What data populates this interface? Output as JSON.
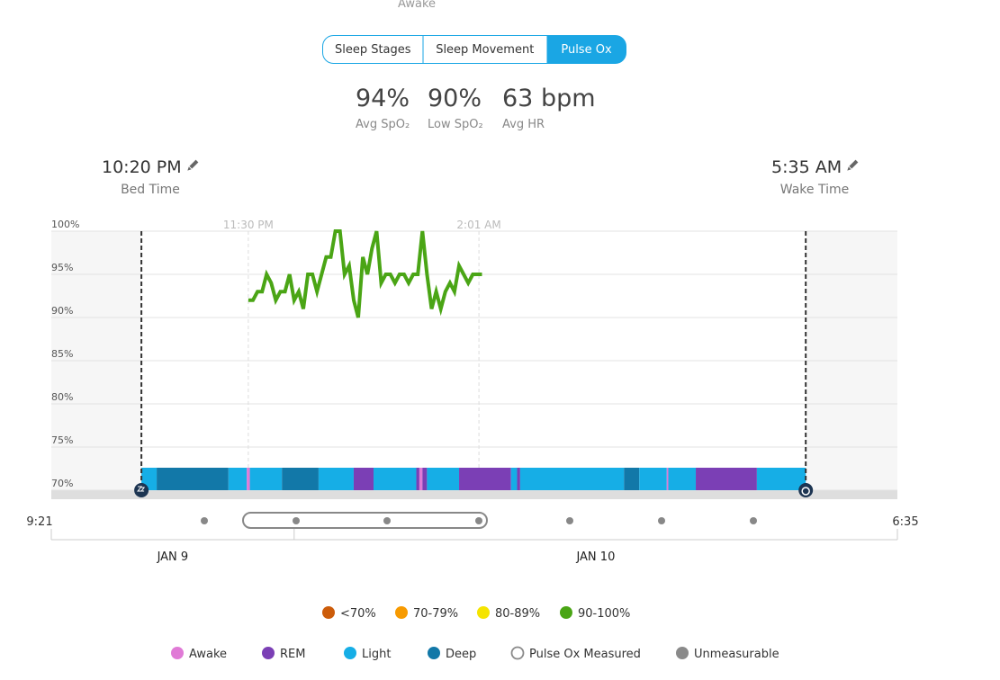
{
  "top_fragment": "Awake",
  "tabs": {
    "items": [
      "Sleep Stages",
      "Sleep Movement",
      "Pulse Ox"
    ],
    "active": 2
  },
  "stats": [
    {
      "value": "94%",
      "label": "Avg SpO₂"
    },
    {
      "value": "90%",
      "label": "Low SpO₂"
    },
    {
      "value": "63 bpm",
      "label": "Avg HR"
    }
  ],
  "bed_time": {
    "time": "10:20 PM",
    "label": "Bed Time"
  },
  "wake_time": {
    "time": "5:35 AM",
    "label": "Wake Time"
  },
  "chart_data": {
    "type": "line",
    "x": [
      "23:30",
      "23:33",
      "23:36",
      "23:39",
      "23:42",
      "23:45",
      "23:48",
      "23:51",
      "23:54",
      "23:57",
      "00:00",
      "00:03",
      "00:06",
      "00:09",
      "00:12",
      "00:15",
      "00:18",
      "00:21",
      "00:24",
      "00:27",
      "00:30",
      "00:33",
      "00:36",
      "00:39",
      "00:42",
      "00:45",
      "00:48",
      "00:51",
      "00:54",
      "00:57",
      "01:00",
      "01:03",
      "01:06",
      "01:09",
      "01:12",
      "01:15",
      "01:18",
      "01:21",
      "01:24",
      "01:27",
      "01:30",
      "01:33",
      "01:36",
      "01:39",
      "01:42",
      "01:45",
      "01:48",
      "01:51",
      "01:54",
      "01:57",
      "02:00",
      "02:03"
    ],
    "values": [
      92,
      92,
      93,
      93,
      95,
      94,
      92,
      93,
      93,
      95,
      92,
      93,
      91,
      95,
      95,
      93,
      95,
      97,
      97,
      100,
      100,
      95,
      96,
      92,
      90,
      97,
      95,
      98,
      100,
      94,
      95,
      95,
      94,
      95,
      95,
      94,
      95,
      95,
      100,
      95,
      91,
      93,
      91,
      93,
      94,
      93,
      96,
      95,
      94,
      95,
      95,
      95
    ],
    "color": "#4aa515",
    "xlim": [
      "21:21",
      "06:35"
    ],
    "xticks": [
      {
        "value": "23:30",
        "label": "11:30 PM"
      },
      {
        "value": "02:01",
        "label": "2:01 AM"
      }
    ],
    "ylim": [
      70,
      100
    ],
    "yticks": [
      {
        "value": 70,
        "label": "70%"
      },
      {
        "value": 75,
        "label": "75%"
      },
      {
        "value": 80,
        "label": "80%"
      },
      {
        "value": 85,
        "label": "85%"
      },
      {
        "value": 90,
        "label": "90%"
      },
      {
        "value": 95,
        "label": "95%"
      },
      {
        "value": 100,
        "label": "100%"
      }
    ],
    "grid": true,
    "sleep_stages": [
      {
        "stage": "Light",
        "start": "22:20",
        "end": "22:30"
      },
      {
        "stage": "Deep",
        "start": "22:30",
        "end": "23:17"
      },
      {
        "stage": "Light",
        "start": "23:17",
        "end": "23:29"
      },
      {
        "stage": "Awake",
        "start": "23:29",
        "end": "23:31"
      },
      {
        "stage": "Light",
        "start": "23:31",
        "end": "23:52"
      },
      {
        "stage": "Deep",
        "start": "23:52",
        "end": "00:16"
      },
      {
        "stage": "Light",
        "start": "00:16",
        "end": "00:39"
      },
      {
        "stage": "REM",
        "start": "00:39",
        "end": "00:52"
      },
      {
        "stage": "Light",
        "start": "00:52",
        "end": "01:20"
      },
      {
        "stage": "REM",
        "start": "01:20",
        "end": "01:22"
      },
      {
        "stage": "Awake",
        "start": "01:22",
        "end": "01:24"
      },
      {
        "stage": "REM",
        "start": "01:24",
        "end": "01:27"
      },
      {
        "stage": "Light",
        "start": "01:27",
        "end": "01:48"
      },
      {
        "stage": "REM",
        "start": "01:48",
        "end": "02:22"
      },
      {
        "stage": "Light",
        "start": "02:22",
        "end": "02:26"
      },
      {
        "stage": "REM",
        "start": "02:26",
        "end": "02:28"
      },
      {
        "stage": "Light",
        "start": "02:28",
        "end": "03:36"
      },
      {
        "stage": "Deep",
        "start": "03:36",
        "end": "03:46"
      },
      {
        "stage": "Light",
        "start": "03:46",
        "end": "04:04"
      },
      {
        "stage": "Awake",
        "start": "04:04",
        "end": "04:05"
      },
      {
        "stage": "Light",
        "start": "04:05",
        "end": "04:23"
      },
      {
        "stage": "REM",
        "start": "04:23",
        "end": "05:03"
      },
      {
        "stage": "Light",
        "start": "05:03",
        "end": "05:35"
      }
    ]
  },
  "range_labels": [
    "9:21",
    "6:35"
  ],
  "dates": [
    "JAN 9",
    "JAN 10"
  ],
  "spo2_legend": [
    {
      "label": "<70%",
      "color": "#cc5c0a"
    },
    {
      "label": "70-79%",
      "color": "#f79a00"
    },
    {
      "label": "80-89%",
      "color": "#f5e400"
    },
    {
      "label": "90-100%",
      "color": "#4aa515"
    }
  ],
  "stage_legend": [
    {
      "label": "Awake",
      "color": "#e07ad6"
    },
    {
      "label": "REM",
      "color": "#7b3fb5"
    },
    {
      "label": "Light",
      "color": "#16aee6"
    },
    {
      "label": "Deep",
      "color": "#1278a8"
    },
    {
      "label": "Pulse Ox Measured",
      "color": "#8a8a8a",
      "hollow": true
    },
    {
      "label": "Unmeasurable",
      "color": "#8a8a8a"
    }
  ]
}
